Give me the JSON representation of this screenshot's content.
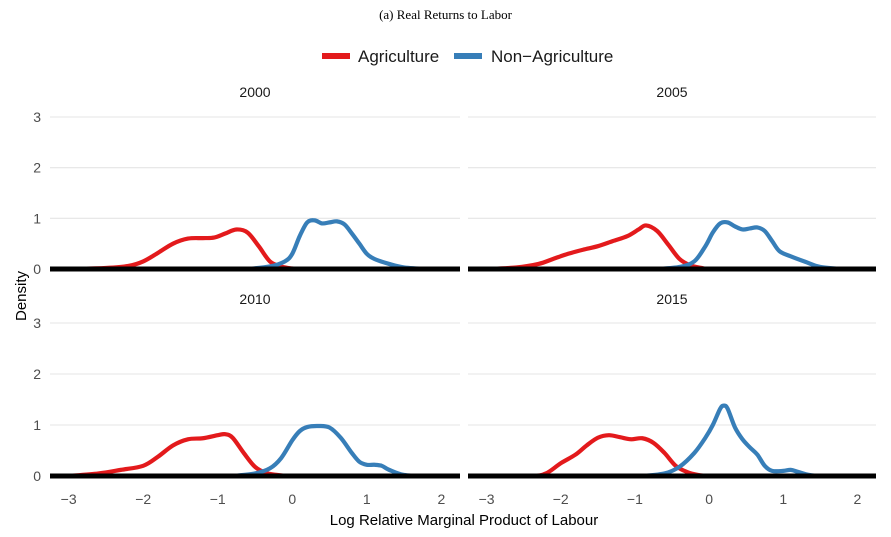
{
  "caption": "(a) Real Returns to Labor",
  "colors": {
    "agriculture": "#e31a1c",
    "non_agriculture": "#377eb8",
    "grid": "#e5e5e5",
    "baseline": "#000000"
  },
  "chart_data": {
    "type": "line",
    "subtype": "density",
    "title": "",
    "xlabel": "Log Relative Marginal Product of Labour",
    "ylabel": "Density",
    "xlim": [
      -3.25,
      2.25
    ],
    "ylim": [
      0,
      3.0
    ],
    "x_ticks": [
      "−3",
      "−2",
      "−1",
      "0",
      "1",
      "2"
    ],
    "x_tick_values": [
      -3,
      -2,
      -1,
      0,
      1,
      2
    ],
    "y_ticks": [
      "0",
      "1",
      "2",
      "3"
    ],
    "y_tick_values": [
      0,
      1,
      2,
      3
    ],
    "grid": true,
    "legend": {
      "placement": "top",
      "entries": [
        {
          "name": "Agriculture",
          "color": "#e31a1c"
        },
        {
          "name": "Non−Agriculture",
          "color": "#377eb8"
        }
      ]
    },
    "facets": [
      {
        "label": "2000",
        "series": [
          {
            "name": "Agriculture",
            "x": [
              -3.0,
              -2.5,
              -2.2,
              -2.0,
              -1.8,
              -1.6,
              -1.4,
              -1.2,
              -1.05,
              -0.9,
              -0.75,
              -0.6,
              -0.45,
              -0.3,
              -0.15,
              0.0,
              0.1,
              0.3
            ],
            "y": [
              0.0,
              0.02,
              0.06,
              0.15,
              0.32,
              0.5,
              0.6,
              0.61,
              0.62,
              0.7,
              0.78,
              0.72,
              0.45,
              0.15,
              0.05,
              0.01,
              0.0,
              0.0
            ]
          },
          {
            "name": "Non-Agriculture",
            "x": [
              -0.6,
              -0.3,
              -0.1,
              0.0,
              0.1,
              0.2,
              0.3,
              0.4,
              0.5,
              0.6,
              0.7,
              0.8,
              0.9,
              1.0,
              1.1,
              1.3,
              1.5,
              1.8,
              2.0
            ],
            "y": [
              0.0,
              0.05,
              0.15,
              0.3,
              0.65,
              0.92,
              0.96,
              0.9,
              0.92,
              0.94,
              0.88,
              0.7,
              0.5,
              0.3,
              0.2,
              0.1,
              0.03,
              0.0,
              0.0
            ]
          }
        ]
      },
      {
        "label": "2005",
        "series": [
          {
            "name": "Agriculture",
            "x": [
              -3.0,
              -2.6,
              -2.3,
              -2.1,
              -1.9,
              -1.7,
              -1.5,
              -1.3,
              -1.1,
              -0.95,
              -0.85,
              -0.7,
              -0.55,
              -0.4,
              -0.25,
              -0.1,
              0.0,
              0.3
            ],
            "y": [
              0.0,
              0.03,
              0.1,
              0.2,
              0.3,
              0.38,
              0.45,
              0.55,
              0.65,
              0.78,
              0.86,
              0.75,
              0.48,
              0.2,
              0.07,
              0.02,
              0.0,
              0.0
            ]
          },
          {
            "name": "Non-Agriculture",
            "x": [
              -0.7,
              -0.4,
              -0.2,
              -0.05,
              0.05,
              0.15,
              0.25,
              0.35,
              0.45,
              0.55,
              0.65,
              0.75,
              0.85,
              0.95,
              1.1,
              1.3,
              1.5,
              1.8,
              2.0
            ],
            "y": [
              0.0,
              0.04,
              0.15,
              0.45,
              0.72,
              0.9,
              0.92,
              0.84,
              0.78,
              0.8,
              0.82,
              0.75,
              0.55,
              0.35,
              0.25,
              0.14,
              0.04,
              0.0,
              0.0
            ]
          }
        ]
      },
      {
        "label": "2010",
        "series": [
          {
            "name": "Agriculture",
            "x": [
              -3.0,
              -2.6,
              -2.3,
              -2.0,
              -1.8,
              -1.6,
              -1.4,
              -1.2,
              -1.0,
              -0.9,
              -0.8,
              -0.65,
              -0.5,
              -0.35,
              -0.2,
              -0.05,
              0.1,
              0.3
            ],
            "y": [
              0.0,
              0.05,
              0.12,
              0.2,
              0.38,
              0.6,
              0.72,
              0.74,
              0.8,
              0.82,
              0.75,
              0.45,
              0.18,
              0.06,
              0.02,
              0.0,
              0.0,
              0.0
            ]
          },
          {
            "name": "Non-Agriculture",
            "x": [
              -0.8,
              -0.5,
              -0.3,
              -0.15,
              0.0,
              0.1,
              0.2,
              0.35,
              0.5,
              0.65,
              0.8,
              0.9,
              1.0,
              1.1,
              1.2,
              1.3,
              1.5,
              1.8,
              2.0
            ],
            "y": [
              0.0,
              0.05,
              0.15,
              0.35,
              0.7,
              0.88,
              0.96,
              0.98,
              0.95,
              0.75,
              0.45,
              0.28,
              0.22,
              0.22,
              0.2,
              0.12,
              0.02,
              0.0,
              0.0
            ]
          }
        ]
      },
      {
        "label": "2015",
        "series": [
          {
            "name": "Agriculture",
            "x": [
              -3.0,
              -2.4,
              -2.2,
              -2.0,
              -1.8,
              -1.65,
              -1.5,
              -1.35,
              -1.2,
              -1.05,
              -0.9,
              -0.75,
              -0.6,
              -0.45,
              -0.3,
              -0.15,
              0.0,
              0.3
            ],
            "y": [
              0.0,
              0.0,
              0.05,
              0.25,
              0.42,
              0.6,
              0.75,
              0.8,
              0.76,
              0.72,
              0.74,
              0.65,
              0.45,
              0.2,
              0.08,
              0.02,
              0.0,
              0.0
            ]
          },
          {
            "name": "Non-Agriculture",
            "x": [
              -0.9,
              -0.6,
              -0.4,
              -0.2,
              -0.05,
              0.05,
              0.15,
              0.2,
              0.25,
              0.35,
              0.45,
              0.55,
              0.65,
              0.75,
              0.85,
              1.0,
              1.1,
              1.2,
              1.35,
              1.5,
              1.8
            ],
            "y": [
              0.0,
              0.05,
              0.18,
              0.45,
              0.75,
              1.0,
              1.32,
              1.38,
              1.32,
              0.95,
              0.72,
              0.56,
              0.42,
              0.2,
              0.1,
              0.1,
              0.12,
              0.08,
              0.02,
              0.0,
              0.0
            ]
          }
        ]
      }
    ]
  }
}
